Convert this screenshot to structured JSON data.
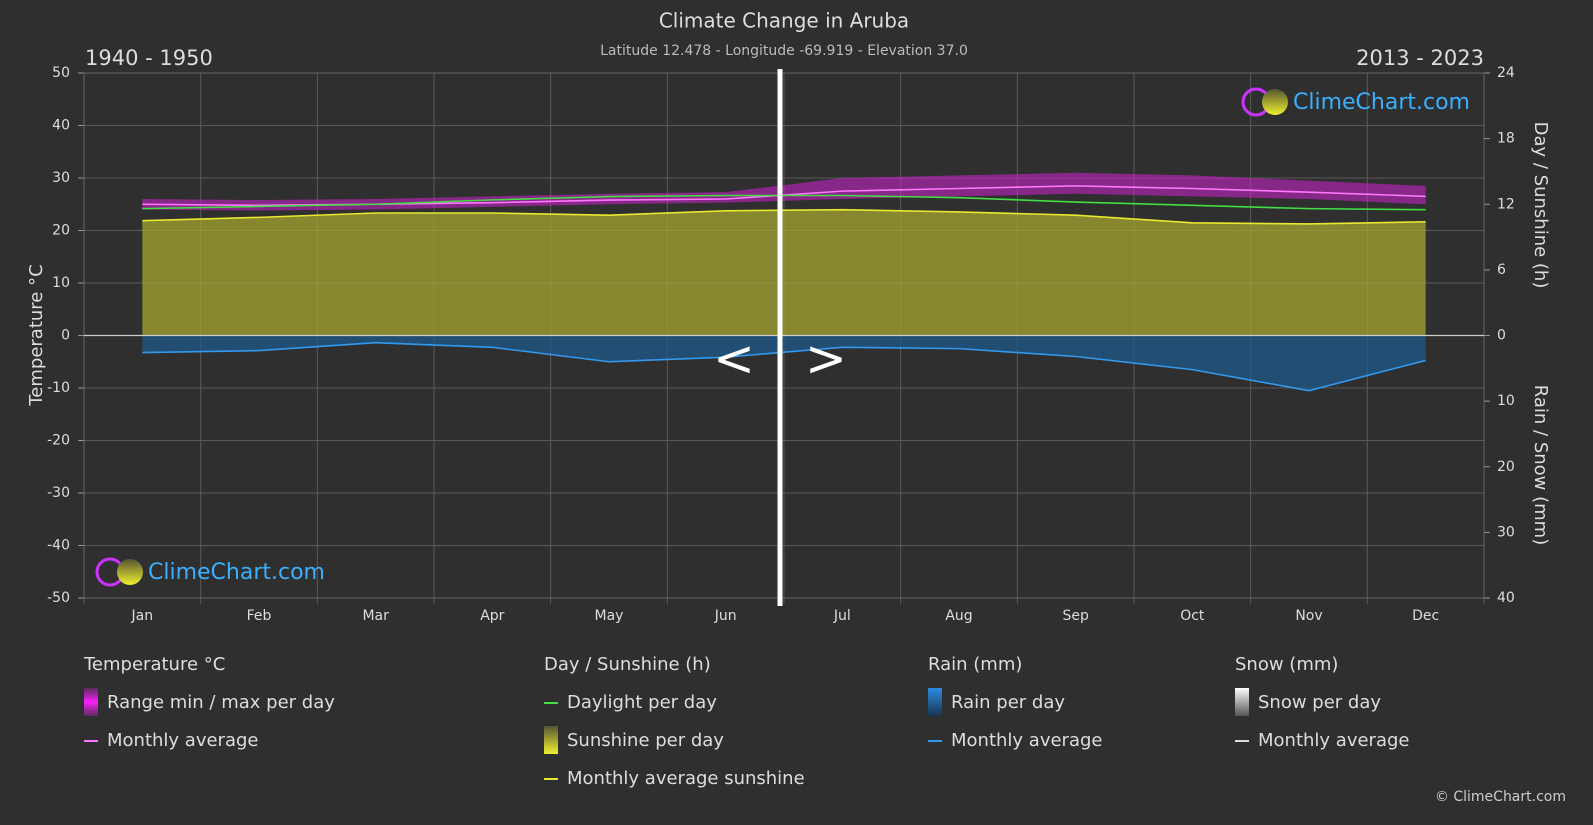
{
  "chart_data": {
    "type": "climate",
    "title": "Climate Change in Aruba",
    "subtitle": "Latitude 12.478 - Longitude -69.919 - Elevation 37.0",
    "period_left": "1940 - 1950",
    "period_right": "2013 - 2023",
    "nav": [
      "<",
      ">"
    ],
    "brand": "ClimeChart.com",
    "copyright": "© ClimeChart.com",
    "categories": [
      "Jan",
      "Feb",
      "Mar",
      "Apr",
      "May",
      "Jun",
      "Jul",
      "Aug",
      "Sep",
      "Oct",
      "Nov",
      "Dec"
    ],
    "ylabel": "Temperature °C",
    "ylim": [
      -50,
      50
    ],
    "yticks": [
      -50,
      -40,
      -30,
      -20,
      -10,
      0,
      10,
      20,
      30,
      40,
      50
    ],
    "y2label": "Day / Sunshine (h)",
    "y2lim": [
      0,
      24
    ],
    "y2ticks": [
      0,
      6,
      12,
      18,
      24
    ],
    "y3label": "Rain / Snow (mm)",
    "y3lim": [
      0,
      40
    ],
    "y3ticks": [
      10,
      20,
      30,
      40
    ],
    "grid": true,
    "groups": [
      {
        "title": "Temperature °C",
        "axis": "y",
        "series": [
          {
            "name": "Range min / max per day",
            "style": "band",
            "color": "#d020d0",
            "min": [
              24,
              23.8,
              24,
              24.5,
              25,
              25.3,
              26,
              26.5,
              27,
              26.5,
              26,
              25
            ],
            "max": [
              26,
              25.8,
              26,
              26.5,
              27,
              27.3,
              30,
              30.5,
              31,
              30.5,
              29.5,
              28.5
            ]
          },
          {
            "name": "Monthly average",
            "style": "line",
            "color": "#ff77ff",
            "values": [
              25,
              24.8,
              25,
              25.3,
              25.8,
              26,
              27.5,
              28,
              28.5,
              28,
              27.3,
              26.5
            ]
          }
        ]
      },
      {
        "title": "Day / Sunshine (h)",
        "axis": "y2",
        "series": [
          {
            "name": "Daylight per day",
            "style": "line",
            "color": "#44dd44",
            "values": [
              11.6,
              11.8,
              12,
              12.4,
              12.7,
              12.8,
              12.8,
              12.6,
              12.2,
              11.9,
              11.6,
              11.5
            ]
          },
          {
            "name": "Sunshine per day",
            "style": "area",
            "color": "#a6a632",
            "values": [
              10.5,
              10.8,
              11.2,
              11.2,
              11,
              11.4,
              11.5,
              11.3,
              11,
              10.3,
              10.2,
              10.4
            ]
          },
          {
            "name": "Monthly average sunshine",
            "style": "line",
            "color": "#e8e830",
            "values": [
              10.5,
              10.8,
              11.2,
              11.2,
              11,
              11.4,
              11.5,
              11.3,
              11,
              10.3,
              10.2,
              10.4
            ]
          }
        ]
      },
      {
        "title": "Rain (mm)",
        "axis": "y3",
        "series": [
          {
            "name": "Rain per day",
            "style": "area",
            "color": "#1f5a8c",
            "values": [
              2.6,
              2.3,
              1.1,
              1.8,
              4,
              3.3,
              1.8,
              2,
              3.2,
              5.2,
              8.4,
              3.8
            ]
          },
          {
            "name": "Monthly average",
            "style": "line",
            "color": "#3399ee",
            "values": [
              2.6,
              2.3,
              1.1,
              1.8,
              4,
              3.3,
              1.8,
              2,
              3.2,
              5.2,
              8.4,
              3.8
            ]
          }
        ]
      },
      {
        "title": "Snow (mm)",
        "axis": "y3",
        "series": [
          {
            "name": "Snow per day",
            "style": "area",
            "color": "#dddddd"
          },
          {
            "name": "Monthly average",
            "style": "line",
            "color": "#dddddd"
          }
        ]
      }
    ]
  }
}
